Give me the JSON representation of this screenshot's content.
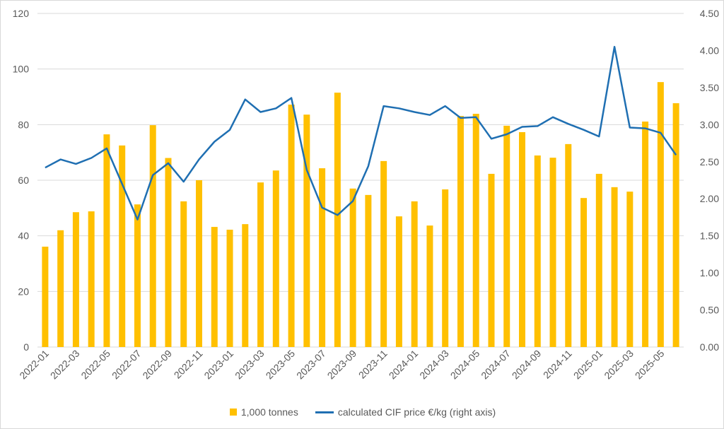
{
  "chart_data": {
    "type": "bar+line",
    "categories": [
      "2022-01",
      "2022-02",
      "2022-03",
      "2022-04",
      "2022-05",
      "2022-06",
      "2022-07",
      "2022-08",
      "2022-09",
      "2022-10",
      "2022-11",
      "2022-12",
      "2023-01",
      "2023-02",
      "2023-03",
      "2023-04",
      "2023-05",
      "2023-06",
      "2023-07",
      "2023-08",
      "2023-09",
      "2023-10",
      "2023-11",
      "2023-12",
      "2024-01",
      "2024-02",
      "2024-03",
      "2024-04",
      "2024-05",
      "2024-06",
      "2024-07",
      "2024-08",
      "2024-09",
      "2024-10",
      "2024-11",
      "2024-12",
      "2025-01",
      "2025-02",
      "2025-03",
      "2025-04",
      "2025-05",
      "2025-06"
    ],
    "x_tick_labels": [
      "2022-01",
      "2022-03",
      "2022-05",
      "2022-07",
      "2022-09",
      "2022-11",
      "2023-01",
      "2023-03",
      "2023-05",
      "2023-07",
      "2023-09",
      "2023-11",
      "2024-01",
      "2024-03",
      "2024-05",
      "2024-07",
      "2024-09",
      "2024-11",
      "2025-01",
      "2025-03",
      "2025-05"
    ],
    "series": [
      {
        "name": "1,000 tonnes",
        "type": "bar",
        "axis": "left",
        "color": "#FFC000",
        "values": [
          36.1,
          42,
          48.5,
          48.8,
          76.5,
          72.5,
          51.3,
          79.8,
          68,
          52.4,
          60,
          43.2,
          42.2,
          44.2,
          59.2,
          63.5,
          87.2,
          83.6,
          64.3,
          91.5,
          57,
          54.7,
          66.9,
          47,
          52.4,
          43.7,
          56.7,
          83.1,
          83.9,
          62.3,
          79.6,
          77.3,
          68.9,
          68.1,
          73,
          53.6,
          62.3,
          57.5,
          55.9,
          81.1,
          95.3,
          87.7
        ]
      },
      {
        "name": "calculated CIF price €/kg (right axis)",
        "type": "line",
        "axis": "right",
        "color": "#1F6FB2",
        "values": [
          2.42,
          2.53,
          2.47,
          2.55,
          2.68,
          2.2,
          1.72,
          2.32,
          2.48,
          2.23,
          2.53,
          2.77,
          2.93,
          3.34,
          3.17,
          3.22,
          3.36,
          2.39,
          1.88,
          1.78,
          1.97,
          2.44,
          3.25,
          3.22,
          3.17,
          3.13,
          3.25,
          3.09,
          3.1,
          2.81,
          2.87,
          2.97,
          2.98,
          3.1,
          3.01,
          2.93,
          2.84,
          4.05,
          2.96,
          2.95,
          2.89,
          2.59
        ]
      }
    ],
    "y_left": {
      "ylim": [
        0,
        120
      ],
      "ticks": [
        "0",
        "20",
        "40",
        "60",
        "80",
        "100",
        "120"
      ]
    },
    "y_right": {
      "ylim": [
        0,
        4.5
      ],
      "ticks": [
        "0.00",
        "0.50",
        "1.00",
        "1.50",
        "2.00",
        "2.50",
        "3.00",
        "3.50",
        "4.00",
        "4.50"
      ]
    },
    "grid": true,
    "legend": "bottom"
  }
}
